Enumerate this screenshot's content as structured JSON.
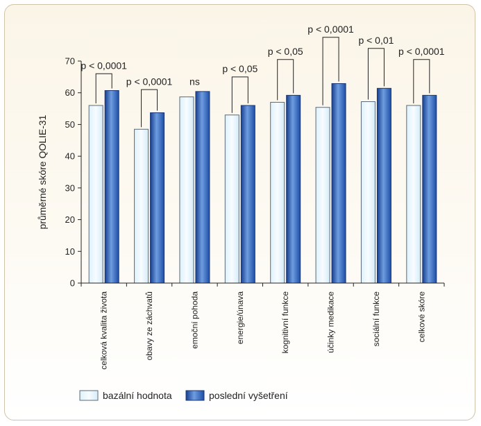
{
  "chart_data": {
    "type": "bar",
    "ylabel": "průměrné skóre QOLIE-31",
    "ylim": [
      0,
      70
    ],
    "yticks": [
      0,
      10,
      20,
      30,
      40,
      50,
      60,
      70
    ],
    "grid": false,
    "legend_position": "bottom",
    "categories": [
      "celková kvalita života",
      "obavy ze záchvatů",
      "emoční pohoda",
      "energie/únava",
      "kognitivní funkce",
      "účinky medikace",
      "sociální funkce",
      "celkové skóre"
    ],
    "series": [
      {
        "name": "bazální hodnota",
        "color": "#eaf6fd",
        "values": [
          56.0,
          48.5,
          58.7,
          53.0,
          57.0,
          55.4,
          57.2,
          56.0
        ]
      },
      {
        "name": "poslední vyšetření",
        "color": "#2f64b8",
        "values": [
          60.7,
          53.7,
          60.4,
          56.0,
          59.2,
          62.9,
          61.4,
          59.2
        ]
      }
    ],
    "annotations": [
      {
        "category": 0,
        "text": "p < 0,0001",
        "level": 66.0,
        "label": 67.5,
        "bracket": true
      },
      {
        "category": 1,
        "text": "p < 0,0001",
        "level": 61.0,
        "label": 62.5,
        "bracket": true
      },
      {
        "category": 2,
        "text": "ns",
        "level": null,
        "label": 62.5,
        "bracket": false
      },
      {
        "category": 3,
        "text": "p < 0,05",
        "level": 65.0,
        "label": 66.5,
        "bracket": true
      },
      {
        "category": 4,
        "text": "p < 0,05",
        "level": 70.5,
        "label": 72.0,
        "bracket": true
      },
      {
        "category": 5,
        "text": "p < 0,0001",
        "level": 77.5,
        "label": 79.0,
        "bracket": true
      },
      {
        "category": 6,
        "text": "p < 0,01",
        "level": 74.0,
        "label": 75.5,
        "bracket": true
      },
      {
        "category": 7,
        "text": "p < 0,0001",
        "level": 70.5,
        "label": 72.0,
        "bracket": true
      }
    ]
  }
}
